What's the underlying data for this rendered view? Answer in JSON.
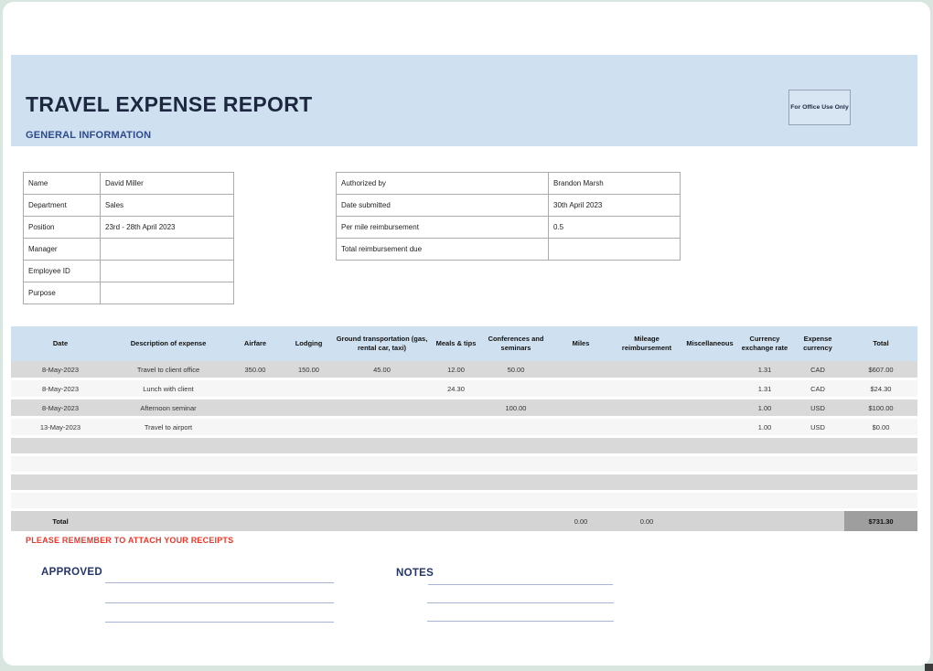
{
  "page": {
    "title": "TRAVEL EXPENSE REPORT",
    "subtitle": "GENERAL INFORMATION",
    "office_box_label": "For Office Use Only",
    "receipts_note": "PLEASE REMEMBER TO ATTACH YOUR RECEIPTS",
    "approved_label": "APPROVED",
    "notes_label": "NOTES"
  },
  "colors": {
    "header_band": "#cfe1f0",
    "row_shade": "#d9d9d9",
    "row_light": "#f6f6f6",
    "total_row": "#d4d4d4",
    "grand_total_cell": "#9e9e9e",
    "title_navy": "#1d2740",
    "accent_blue": "#2d4a8c",
    "alert_red": "#e23b2e",
    "page_background": "#d9e6e0"
  },
  "general_info": {
    "left": [
      {
        "label": "Name",
        "value": "David Miller"
      },
      {
        "label": "Department",
        "value": "Sales"
      },
      {
        "label": "Position",
        "value": "23rd - 28th April 2023"
      },
      {
        "label": "Manager",
        "value": ""
      },
      {
        "label": "Employee ID",
        "value": ""
      },
      {
        "label": "Purpose",
        "value": ""
      }
    ],
    "right": [
      {
        "label": "Authorized by",
        "value": "Brandon Marsh"
      },
      {
        "label": "Date submitted",
        "value": "30th April 2023"
      },
      {
        "label": "Per mile reimbursement",
        "value": "0.5"
      },
      {
        "label": "Total reimbursement due",
        "value": ""
      }
    ]
  },
  "expense_table": {
    "columns": [
      "Date",
      "Description of expense",
      "Airfare",
      "Lodging",
      "Ground transportation (gas, rental car, taxi)",
      "Meals & tips",
      "Conferences and seminars",
      "Miles",
      "Mileage reimbursement",
      "Miscellaneous",
      "Currency exchange rate",
      "Expense currency",
      "Total"
    ],
    "rows": [
      [
        "8-May-2023",
        "Travel to client office",
        "350.00",
        "150.00",
        "45.00",
        "12.00",
        "50.00",
        "",
        "",
        "",
        "1.31",
        "CAD",
        "$607.00"
      ],
      [
        "8-May-2023",
        "Lunch with client",
        "",
        "",
        "",
        "24.30",
        "",
        "",
        "",
        "",
        "1.31",
        "CAD",
        "$24.30"
      ],
      [
        "8-May-2023",
        "Afternoon seminar",
        "",
        "",
        "",
        "",
        "100.00",
        "",
        "",
        "",
        "1.00",
        "USD",
        "$100.00"
      ],
      [
        "13-May-2023",
        "Travel to airport",
        "",
        "",
        "",
        "",
        "",
        "",
        "",
        "",
        "1.00",
        "USD",
        "$0.00"
      ],
      [
        "",
        "",
        "",
        "",
        "",
        "",
        "",
        "",
        "",
        "",
        "",
        "",
        ""
      ],
      [
        "",
        "",
        "",
        "",
        "",
        "",
        "",
        "",
        "",
        "",
        "",
        "",
        ""
      ],
      [
        "",
        "",
        "",
        "",
        "",
        "",
        "",
        "",
        "",
        "",
        "",
        "",
        ""
      ],
      [
        "",
        "",
        "",
        "",
        "",
        "",
        "",
        "",
        "",
        "",
        "",
        "",
        ""
      ]
    ],
    "total_row": {
      "label": "Total",
      "miles_total": "0.00",
      "mileage_reimbursement_total": "0.00",
      "grand_total": "$731.30"
    }
  }
}
